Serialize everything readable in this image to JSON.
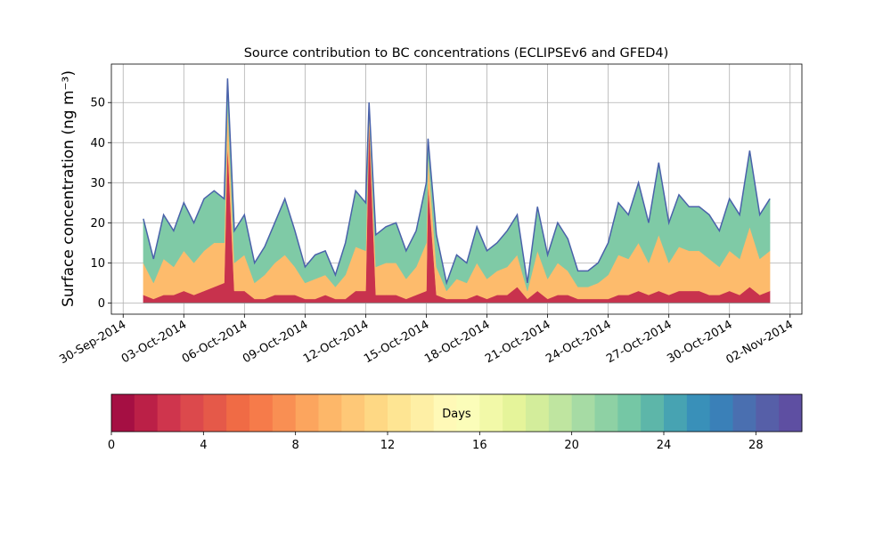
{
  "chart_data": {
    "type": "stacked_area",
    "title": "Source contribution to BC concentrations (ECLIPSEv6 and GFED4)",
    "y_label": "Surface concentration (ng m⁻³)",
    "x": [
      "2014-10-01T00:00",
      "2014-10-01T12:00",
      "2014-10-02T00:00",
      "2014-10-02T12:00",
      "2014-10-03T00:00",
      "2014-10-03T12:00",
      "2014-10-04T00:00",
      "2014-10-04T12:00",
      "2014-10-05T00:00",
      "2014-10-05T04:00",
      "2014-10-05T12:00",
      "2014-10-06T00:00",
      "2014-10-06T12:00",
      "2014-10-07T00:00",
      "2014-10-07T12:00",
      "2014-10-08T00:00",
      "2014-10-08T12:00",
      "2014-10-09T00:00",
      "2014-10-09T12:00",
      "2014-10-10T00:00",
      "2014-10-10T12:00",
      "2014-10-11T00:00",
      "2014-10-11T12:00",
      "2014-10-12T00:00",
      "2014-10-12T04:00",
      "2014-10-12T12:00",
      "2014-10-13T00:00",
      "2014-10-13T12:00",
      "2014-10-14T00:00",
      "2014-10-14T12:00",
      "2014-10-15T00:00",
      "2014-10-15T02:00",
      "2014-10-15T12:00",
      "2014-10-16T00:00",
      "2014-10-16T12:00",
      "2014-10-17T00:00",
      "2014-10-17T12:00",
      "2014-10-18T00:00",
      "2014-10-18T12:00",
      "2014-10-19T00:00",
      "2014-10-19T12:00",
      "2014-10-20T00:00",
      "2014-10-20T12:00",
      "2014-10-21T00:00",
      "2014-10-21T12:00",
      "2014-10-22T00:00",
      "2014-10-22T12:00",
      "2014-10-23T00:00",
      "2014-10-23T12:00",
      "2014-10-24T00:00",
      "2014-10-24T12:00",
      "2014-10-25T00:00",
      "2014-10-25T12:00",
      "2014-10-26T00:00",
      "2014-10-26T12:00",
      "2014-10-27T00:00",
      "2014-10-27T12:00",
      "2014-10-28T00:00",
      "2014-10-28T12:00",
      "2014-10-29T00:00",
      "2014-10-29T12:00",
      "2014-10-30T00:00",
      "2014-10-30T12:00",
      "2014-10-31T00:00",
      "2014-10-31T12:00",
      "2014-11-01T00:00"
    ],
    "series": [
      {
        "color": "#c8324d",
        "values": [
          2,
          1,
          2,
          2,
          3,
          2,
          3,
          4,
          5,
          40,
          3,
          3,
          1,
          1,
          2,
          2,
          2,
          1,
          1,
          2,
          1,
          1,
          3,
          3,
          45,
          2,
          2,
          2,
          1,
          2,
          3,
          30,
          2,
          1,
          1,
          1,
          2,
          1,
          2,
          2,
          4,
          1,
          3,
          1,
          2,
          2,
          1,
          1,
          1,
          1,
          2,
          2,
          3,
          2,
          3,
          2,
          3,
          3,
          3,
          2,
          2,
          3,
          2,
          4,
          2,
          3
        ]
      },
      {
        "color": "#fdbb6c",
        "values": [
          8,
          4,
          9,
          7,
          10,
          8,
          10,
          11,
          10,
          10,
          7,
          9,
          4,
          6,
          8,
          10,
          7,
          4,
          5,
          5,
          3,
          6,
          11,
          10,
          3,
          7,
          8,
          8,
          5,
          7,
          12,
          7,
          7,
          2,
          5,
          4,
          8,
          5,
          6,
          7,
          8,
          2,
          10,
          5,
          8,
          6,
          3,
          3,
          4,
          6,
          10,
          9,
          12,
          8,
          14,
          8,
          11,
          10,
          10,
          9,
          7,
          10,
          9,
          15,
          9,
          10
        ]
      },
      {
        "color": "#7fcaa6",
        "values": [
          11,
          6,
          11,
          9,
          12,
          10,
          13,
          13,
          11,
          6,
          8,
          10,
          5,
          7,
          10,
          14,
          9,
          4,
          6,
          6,
          3,
          8,
          14,
          12,
          2,
          8,
          9,
          10,
          7,
          9,
          15,
          4,
          8,
          2,
          6,
          5,
          9,
          7,
          7,
          9,
          10,
          2,
          11,
          6,
          10,
          8,
          4,
          4,
          5,
          8,
          13,
          11,
          15,
          10,
          18,
          10,
          13,
          11,
          11,
          11,
          9,
          13,
          11,
          19,
          11,
          13
        ]
      }
    ],
    "edge_color": "#4a62aa",
    "xlim": [
      "2014-09-29T10:00",
      "2014-11-02T14:00"
    ],
    "xticks": [
      {
        "value": "2014-09-30T00:00",
        "label": "30-Sep-2014"
      },
      {
        "value": "2014-10-03T00:00",
        "label": "03-Oct-2014"
      },
      {
        "value": "2014-10-06T00:00",
        "label": "06-Oct-2014"
      },
      {
        "value": "2014-10-09T00:00",
        "label": "09-Oct-2014"
      },
      {
        "value": "2014-10-12T00:00",
        "label": "12-Oct-2014"
      },
      {
        "value": "2014-10-15T00:00",
        "label": "15-Oct-2014"
      },
      {
        "value": "2014-10-18T00:00",
        "label": "18-Oct-2014"
      },
      {
        "value": "2014-10-21T00:00",
        "label": "21-Oct-2014"
      },
      {
        "value": "2014-10-24T00:00",
        "label": "24-Oct-2014"
      },
      {
        "value": "2014-10-27T00:00",
        "label": "27-Oct-2014"
      },
      {
        "value": "2014-10-30T00:00",
        "label": "30-Oct-2014"
      },
      {
        "value": "2014-11-02T00:00",
        "label": "02-Nov-2014"
      }
    ],
    "ylim": [
      -2.8,
      59.6
    ],
    "yticks": [
      0,
      10,
      20,
      30,
      40,
      50
    ],
    "grid": true,
    "colorbar": {
      "label": "Days",
      "range": [
        0,
        30
      ],
      "ticks": [
        0,
        4,
        8,
        12,
        16,
        20,
        24,
        28
      ],
      "colors": [
        "#a50f43",
        "#bb2047",
        "#cf354d",
        "#dc494c",
        "#e55949",
        "#f06b45",
        "#f67b4a",
        "#f98f53",
        "#fca55e",
        "#fdb769",
        "#fec877",
        "#fed884",
        "#fee593",
        "#feefa5",
        "#fff9b7",
        "#fbfdb9",
        "#f2f9a8",
        "#e5f49a",
        "#d3ed9b",
        "#bfe5a0",
        "#a6dba4",
        "#8ed1a4",
        "#75c7a5",
        "#5db6a9",
        "#47a3b2",
        "#3990b9",
        "#3a80b8",
        "#4a6fb0",
        "#565fa8",
        "#5e4fa2"
      ]
    }
  }
}
